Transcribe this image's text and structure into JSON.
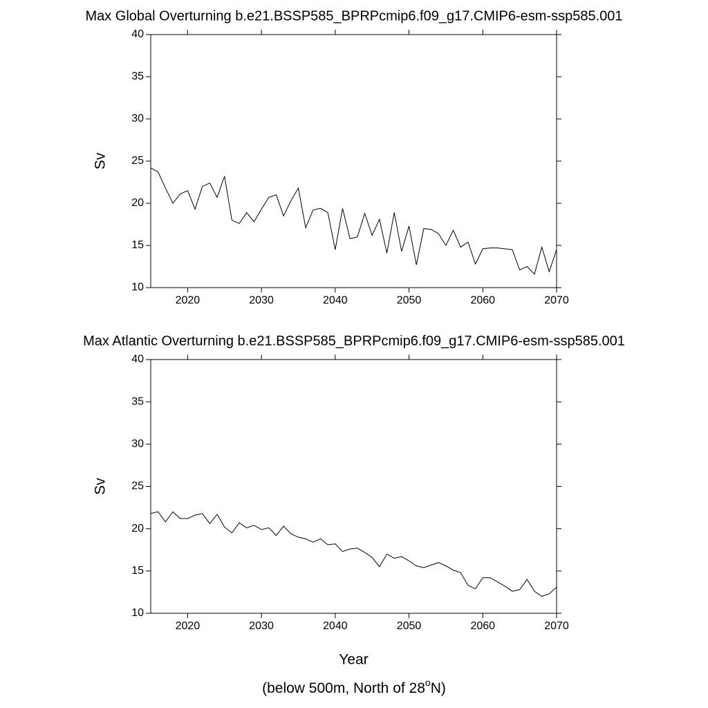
{
  "chart_data": [
    {
      "type": "line",
      "title": "Max Global Overturning b.e21.BSSP585_BPRPcmip6.f09_g17.CMIP6-esm-ssp585.001",
      "ylabel": "Sv",
      "x": [
        2015,
        2016,
        2017,
        2018,
        2019,
        2020,
        2021,
        2022,
        2023,
        2024,
        2025,
        2026,
        2027,
        2028,
        2029,
        2030,
        2031,
        2032,
        2033,
        2034,
        2035,
        2036,
        2037,
        2038,
        2039,
        2040,
        2041,
        2042,
        2043,
        2044,
        2045,
        2046,
        2047,
        2048,
        2049,
        2050,
        2051,
        2052,
        2053,
        2054,
        2055,
        2056,
        2057,
        2058,
        2059,
        2060,
        2061,
        2062,
        2063,
        2064,
        2065,
        2066,
        2067,
        2068,
        2069,
        2070
      ],
      "series": [
        {
          "color": "#000000",
          "values": [
            24.2,
            23.7,
            21.8,
            20.0,
            21.1,
            21.5,
            19.3,
            22.0,
            22.4,
            20.7,
            23.2,
            18.0,
            17.6,
            18.9,
            17.8,
            19.3,
            20.7,
            21.0,
            18.5,
            20.3,
            21.8,
            17.1,
            19.2,
            19.4,
            18.9,
            14.5,
            19.4,
            15.8,
            16.0,
            18.8,
            16.2,
            18.1,
            14.1,
            18.9,
            14.3,
            17.3,
            12.7,
            17.0,
            16.9,
            16.4,
            15.0,
            16.8,
            14.8,
            15.4,
            12.8,
            14.6,
            14.7,
            14.7,
            14.6,
            14.5,
            12.1,
            12.5,
            11.6,
            14.8,
            11.9,
            14.5
          ]
        }
      ],
      "xlim": [
        2015,
        2070
      ],
      "xticks": [
        2020,
        2030,
        2040,
        2050,
        2060,
        2070
      ],
      "ylim": [
        10,
        40
      ],
      "yticks": [
        10,
        15,
        20,
        25,
        30,
        35,
        40
      ]
    },
    {
      "type": "line",
      "title": "Max Atlantic Overturning b.e21.BSSP585_BPRPcmip6.f09_g17.CMIP6-esm-ssp585.001",
      "ylabel": "Sv",
      "xlabel": "Year",
      "x": [
        2015,
        2016,
        2017,
        2018,
        2019,
        2020,
        2021,
        2022,
        2023,
        2024,
        2025,
        2026,
        2027,
        2028,
        2029,
        2030,
        2031,
        2032,
        2033,
        2034,
        2035,
        2036,
        2037,
        2038,
        2039,
        2040,
        2041,
        2042,
        2043,
        2044,
        2045,
        2046,
        2047,
        2048,
        2049,
        2050,
        2051,
        2052,
        2053,
        2054,
        2055,
        2056,
        2057,
        2058,
        2059,
        2060,
        2061,
        2062,
        2063,
        2064,
        2065,
        2066,
        2067,
        2068,
        2069,
        2070
      ],
      "series": [
        {
          "color": "#000000",
          "values": [
            21.8,
            22.0,
            20.8,
            22.0,
            21.2,
            21.2,
            21.6,
            21.8,
            20.6,
            21.7,
            20.2,
            19.5,
            20.7,
            20.1,
            20.4,
            19.9,
            20.1,
            19.2,
            20.3,
            19.4,
            19.0,
            18.8,
            18.4,
            18.8,
            18.1,
            18.2,
            17.3,
            17.6,
            17.7,
            17.2,
            16.6,
            15.5,
            17.0,
            16.5,
            16.7,
            16.2,
            15.6,
            15.4,
            15.7,
            16.0,
            15.6,
            15.1,
            14.8,
            13.3,
            12.9,
            14.2,
            14.2,
            13.7,
            13.2,
            12.6,
            12.8,
            14.0,
            12.6,
            12.0,
            12.3,
            13.1
          ]
        }
      ],
      "xlim": [
        2015,
        2070
      ],
      "xticks": [
        2020,
        2030,
        2040,
        2050,
        2060,
        2070
      ],
      "ylim": [
        10,
        40
      ],
      "yticks": [
        10,
        15,
        20,
        25,
        30,
        35,
        40
      ]
    }
  ],
  "note": {
    "before": "(below 500m, North of 28",
    "sup": "o",
    "after": "N)"
  }
}
